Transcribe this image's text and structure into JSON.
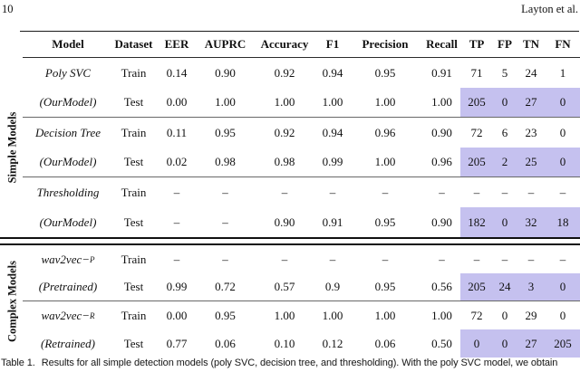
{
  "page": {
    "number": "10",
    "running_author": "Layton et al."
  },
  "caption": {
    "label": "Table 1.",
    "text": "Results for all simple detection models (poly SVC, decision tree, and thresholding). With the poly SVC model, we obtain"
  },
  "colors": {
    "highlight": "#c5c1ef"
  },
  "table": {
    "group_labels": [
      "Simple Models",
      "Complex Models"
    ],
    "columns": [
      "Model",
      "Dataset",
      "EER",
      "AUPRC",
      "Accuracy",
      "F1",
      "Precision",
      "Recall",
      "TP",
      "FP",
      "TN",
      "FN"
    ],
    "rows": [
      {
        "section": "simple",
        "model": "Poly SVC",
        "model_sub": "",
        "dataset": "Train",
        "values": [
          "0.14",
          "0.90",
          "0.92",
          "0.94",
          "0.95",
          "0.91",
          "71",
          "5",
          "24",
          "1"
        ],
        "highlight": false,
        "rule_below": false
      },
      {
        "section": "simple",
        "model": "(OurModel)",
        "model_sub": "",
        "dataset": "Test",
        "values": [
          "0.00",
          "1.00",
          "1.00",
          "1.00",
          "1.00",
          "1.00",
          "205",
          "0",
          "27",
          "0"
        ],
        "highlight": true,
        "rule_below": true
      },
      {
        "section": "simple",
        "model": "Decision Tree",
        "model_sub": "",
        "dataset": "Train",
        "values": [
          "0.11",
          "0.95",
          "0.92",
          "0.94",
          "0.96",
          "0.90",
          "72",
          "6",
          "23",
          "0"
        ],
        "highlight": false,
        "rule_below": false
      },
      {
        "section": "simple",
        "model": "(OurModel)",
        "model_sub": "",
        "dataset": "Test",
        "values": [
          "0.02",
          "0.98",
          "0.98",
          "0.99",
          "1.00",
          "0.96",
          "205",
          "2",
          "25",
          "0"
        ],
        "highlight": true,
        "rule_below": true
      },
      {
        "section": "simple",
        "model": "Thresholding",
        "model_sub": "",
        "dataset": "Train",
        "values": [
          "–",
          "–",
          "–",
          "–",
          "–",
          "–",
          "–",
          "–",
          "–",
          "–"
        ],
        "highlight": false,
        "rule_below": false
      },
      {
        "section": "simple",
        "model": "(OurModel)",
        "model_sub": "",
        "dataset": "Test",
        "values": [
          "–",
          "–",
          "0.90",
          "0.91",
          "0.95",
          "0.90",
          "182",
          "0",
          "32",
          "18"
        ],
        "highlight": true,
        "rule_below": false
      },
      {
        "section": "complex",
        "model": "wav2vec−",
        "model_sub": "P",
        "dataset": "Train",
        "values": [
          "–",
          "–",
          "–",
          "–",
          "–",
          "–",
          "–",
          "–",
          "–",
          "–"
        ],
        "highlight": false,
        "rule_below": false
      },
      {
        "section": "complex",
        "model": "(Pretrained)",
        "model_sub": "",
        "dataset": "Test",
        "values": [
          "0.99",
          "0.72",
          "0.57",
          "0.9",
          "0.95",
          "0.56",
          "205",
          "24",
          "3",
          "0"
        ],
        "highlight": true,
        "rule_below": true
      },
      {
        "section": "complex",
        "model": "wav2vec−",
        "model_sub": "R",
        "dataset": "Train",
        "values": [
          "0.00",
          "0.95",
          "1.00",
          "1.00",
          "1.00",
          "1.00",
          "72",
          "0",
          "29",
          "0"
        ],
        "highlight": false,
        "rule_below": false
      },
      {
        "section": "complex",
        "model": "(Retrained)",
        "model_sub": "",
        "dataset": "Test",
        "values": [
          "0.77",
          "0.06",
          "0.10",
          "0.12",
          "0.06",
          "0.50",
          "0",
          "0",
          "27",
          "205"
        ],
        "highlight": true,
        "rule_below": false
      }
    ]
  }
}
